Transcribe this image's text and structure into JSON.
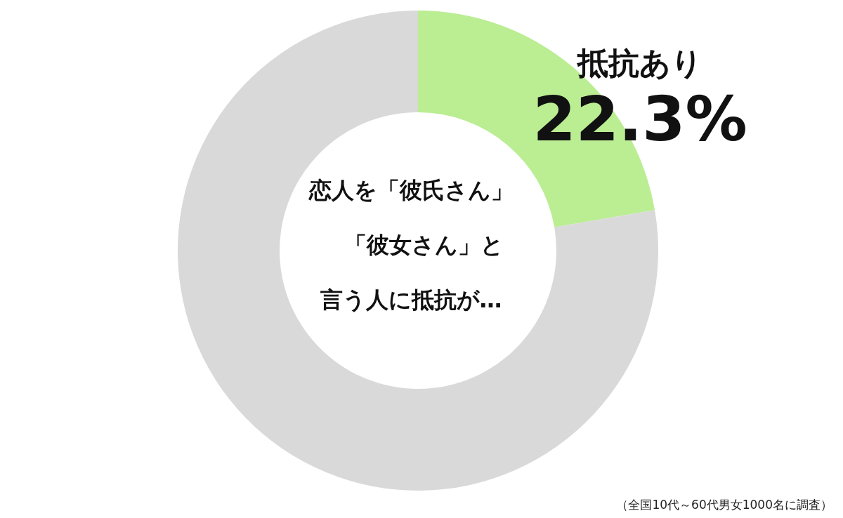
{
  "chart_data": {
    "type": "donut",
    "title": "恋人を「彼氏さん」「彼女さん」と言う人に抵抗が…",
    "categories": [
      "抵抗あり",
      null
    ],
    "values": [
      22.3,
      77.7
    ],
    "colors": [
      "#bbed93",
      "#d9d9d9"
    ],
    "value_labels": [
      "22.3%",
      null
    ],
    "annotations": [
      "（全国10代～60代男女1000名に調査）"
    ]
  }
}
